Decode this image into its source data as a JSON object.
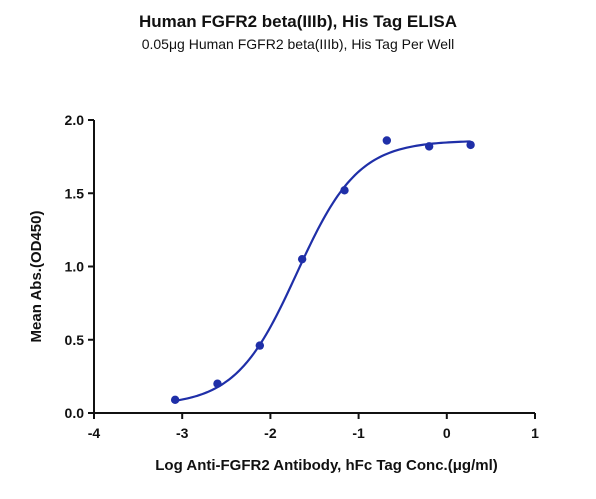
{
  "chart_data": {
    "type": "scatter",
    "title": "Human FGFR2 beta(IIIb), His Tag ELISA",
    "subtitle": "0.05μg Human FGFR2 beta(IIIb), His Tag Per Well",
    "xlabel": "Log Anti-FGFR2 Antibody, hFc Tag Conc.(μg/ml)",
    "ylabel": "Mean Abs.(OD450)",
    "xlim": [
      -4,
      1
    ],
    "ylim": [
      0,
      2.0
    ],
    "x_ticks": [
      "-4",
      "-3",
      "-2",
      "-1",
      "0",
      "1"
    ],
    "y_ticks": [
      "0.0",
      "0.5",
      "1.0",
      "1.5",
      "2.0"
    ],
    "grid": false,
    "series": [
      {
        "color": "#1f2fa8",
        "points": [
          {
            "x": -3.08,
            "y": 0.09
          },
          {
            "x": -2.6,
            "y": 0.2
          },
          {
            "x": -2.12,
            "y": 0.46
          },
          {
            "x": -1.64,
            "y": 1.05
          },
          {
            "x": -1.16,
            "y": 1.52
          },
          {
            "x": -0.68,
            "y": 1.86
          },
          {
            "x": -0.2,
            "y": 1.82
          },
          {
            "x": 0.27,
            "y": 1.83
          }
        ],
        "fit": {
          "model": "4PL",
          "bottom": 0.05,
          "top": 1.86,
          "logEC50": -1.7,
          "hill": 1.25
        }
      }
    ]
  }
}
